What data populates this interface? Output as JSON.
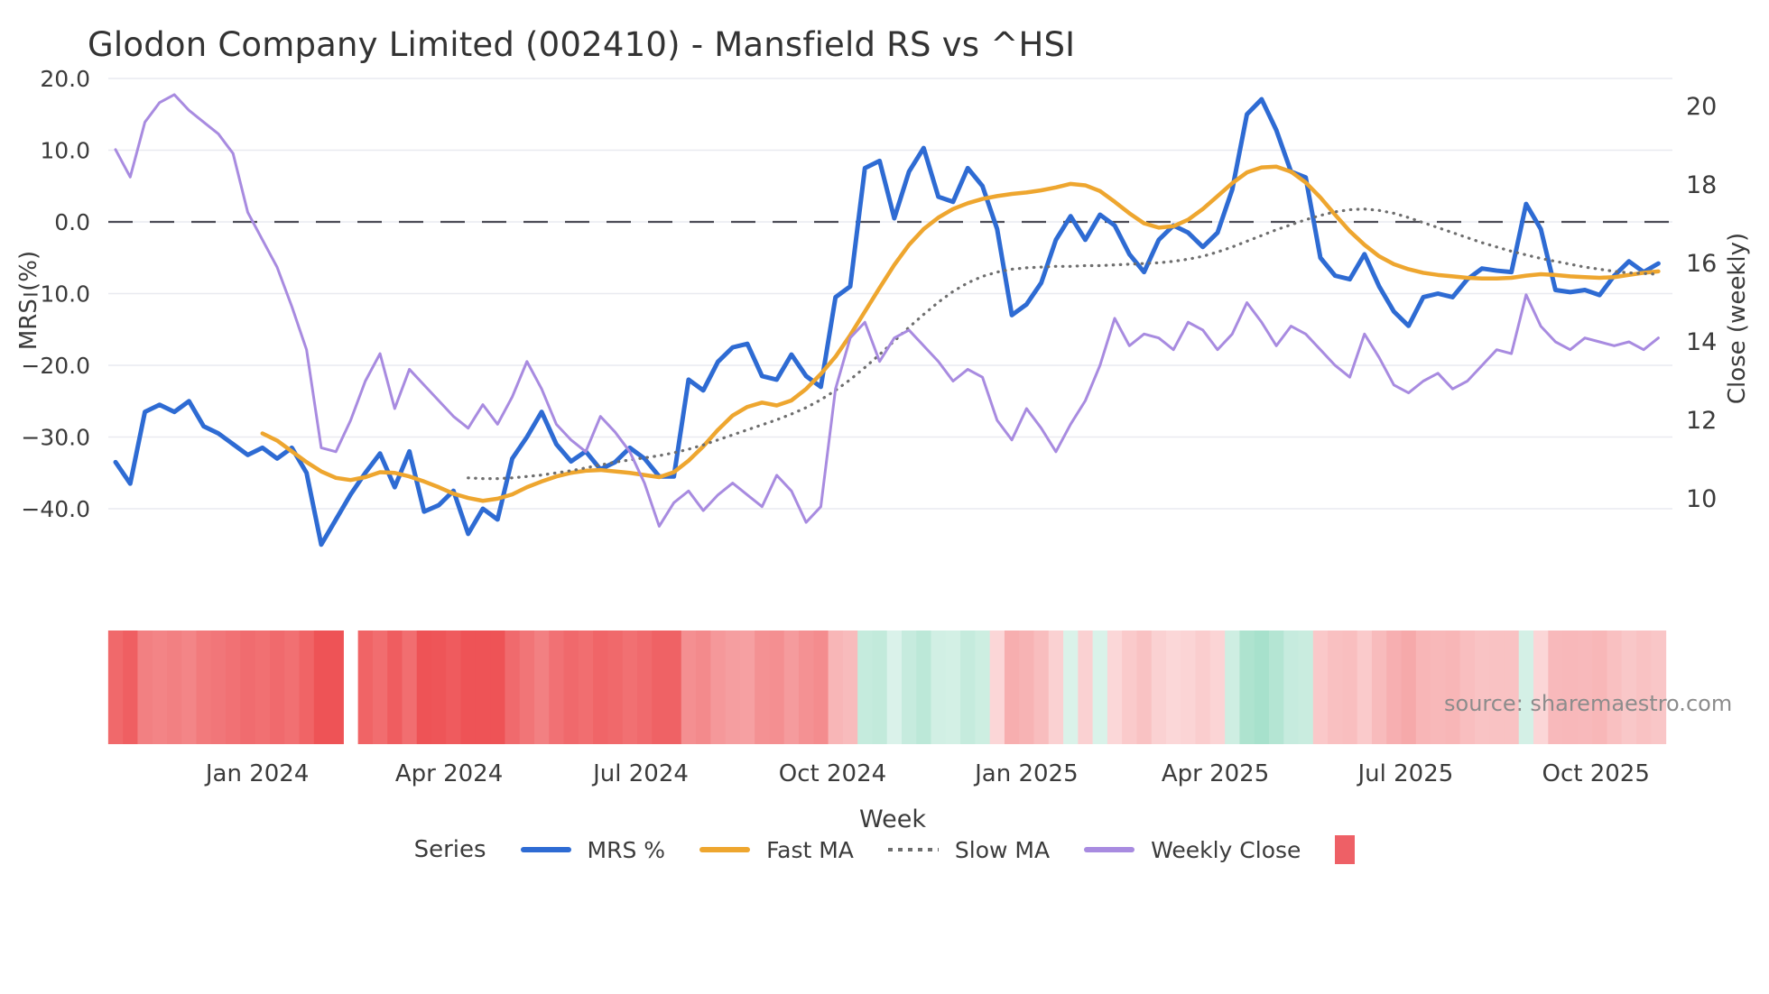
{
  "title": "Glodon Company Limited (002410) - Mansfield RS vs ^HSI",
  "source_text": "source: sharemaestro.com",
  "legend": {
    "title": "Series",
    "items": [
      {
        "label": "MRS %",
        "color": "#2e6bd3",
        "style": "line"
      },
      {
        "label": "Fast MA",
        "color": "#eea62f",
        "style": "line"
      },
      {
        "label": "Slow MA",
        "color": "#6e6e6e",
        "style": "dotted"
      },
      {
        "label": "Weekly Close",
        "color": "#a88be0",
        "style": "line"
      },
      {
        "label": "",
        "color": "#ee6066",
        "style": "square"
      }
    ]
  },
  "colors": {
    "mrs": "#2e6bd3",
    "fast_ma": "#eea62f",
    "slow_ma": "#6e6e6e",
    "weekly_close": "#a88be0",
    "zero_line": "#4b4b55",
    "grid": "#e9eaf0",
    "heat_red": "#ee5356",
    "heat_green": "#60c8a2",
    "tick_text": "#3b3b3b"
  },
  "chart_data": {
    "type": "line",
    "title": "Glodon Company Limited (002410) - Mansfield RS vs ^HSI",
    "xlabel": "Week",
    "ylabel_left": "MRS (%)",
    "ylabel_right": "Close (weekly)",
    "legend_position": "bottom",
    "grid": true,
    "ylim_left": [
      -47,
      22
    ],
    "ylim_right": [
      8.8,
      20.9
    ],
    "yticks_left": [
      20,
      10,
      0,
      -10,
      -20,
      -30,
      -40
    ],
    "ytick_labels_left": [
      "20.0",
      "10.0",
      "0.0",
      "−10.0",
      "−20.0",
      "−30.0",
      "−40.0"
    ],
    "yticks_right": [
      20,
      18,
      16,
      14,
      12,
      10
    ],
    "ytick_labels_right": [
      "20",
      "18",
      "16",
      "14",
      "12",
      "10"
    ],
    "xticks": [
      {
        "label": "Jan 2024",
        "week": 9.65
      },
      {
        "label": "Apr 2024",
        "week": 22.7
      },
      {
        "label": "Jul 2024",
        "week": 35.75
      },
      {
        "label": "Oct 2024",
        "week": 48.8
      },
      {
        "label": "Jan 2025",
        "week": 62.0
      },
      {
        "label": "Apr 2025",
        "week": 74.85
      },
      {
        "label": "Jul 2025",
        "week": 87.8
      },
      {
        "label": "Oct 2025",
        "week": 100.75
      }
    ],
    "n_weeks": 106,
    "zero_line_value": 0,
    "series": [
      {
        "name": "MRS %",
        "axis": "left",
        "color": "#2e6bd3",
        "width": 5,
        "dash": "solid",
        "values": [
          -33.5,
          -36.5,
          -26.5,
          -25.5,
          -26.5,
          -25,
          -28.5,
          -29.5,
          -31,
          -32.5,
          -31.5,
          -33,
          -31.5,
          -35,
          -45,
          -41.5,
          -38,
          -35,
          -32.3,
          -37,
          -32,
          -40.4,
          -39.5,
          -37.5,
          -43.5,
          -40,
          -41.5,
          -33,
          -30,
          -26.5,
          -31,
          -33.4,
          -32,
          -34.5,
          -33.5,
          -31.5,
          -33,
          -35.5,
          -35.5,
          -22,
          -23.5,
          -19.5,
          -17.5,
          -17,
          -21.5,
          -22,
          -18.5,
          -21.5,
          -23,
          -10.5,
          -9,
          7.5,
          8.5,
          0.5,
          7,
          10.3,
          3.5,
          2.8,
          7.5,
          5,
          -1,
          -13,
          -11.5,
          -8.5,
          -2.5,
          0.8,
          -2.5,
          1,
          -0.5,
          -4.5,
          -7,
          -2.5,
          -0.5,
          -1.5,
          -3.5,
          -1.5,
          4.5,
          15,
          17.1,
          12.8,
          7,
          6.2,
          -5,
          -7.5,
          -8,
          -4.5,
          -9,
          -12.5,
          -14.5,
          -10.5,
          -10,
          -10.5,
          -8,
          -6.5,
          -6.8,
          -7,
          2.5,
          -1,
          -9.5,
          -9.8,
          -9.5,
          -10.2,
          -7.5,
          -5.5,
          -7,
          -5.8
        ]
      },
      {
        "name": "Fast MA",
        "axis": "left",
        "color": "#eea62f",
        "width": 4.5,
        "dash": "solid",
        "values": [
          null,
          null,
          null,
          null,
          null,
          null,
          null,
          null,
          null,
          null,
          -29.5,
          -30.5,
          -32,
          -33.5,
          -34.8,
          -35.7,
          -36,
          -35.6,
          -34.9,
          -35,
          -35.5,
          -36.2,
          -37,
          -37.9,
          -38.5,
          -38.9,
          -38.6,
          -38,
          -37,
          -36.2,
          -35.5,
          -35,
          -34.7,
          -34.6,
          -34.8,
          -35,
          -35.3,
          -35.6,
          -34.9,
          -33.3,
          -31.3,
          -29,
          -27,
          -25.8,
          -25.2,
          -25.6,
          -24.9,
          -23.3,
          -21.2,
          -18.8,
          -15.8,
          -12.5,
          -9.2,
          -6,
          -3.2,
          -1,
          0.6,
          1.8,
          2.6,
          3.2,
          3.6,
          3.9,
          4.1,
          4.4,
          4.8,
          5.3,
          5.1,
          4.3,
          2.8,
          1.2,
          -0.2,
          -0.8,
          -0.6,
          0.3,
          1.8,
          3.6,
          5.4,
          6.9,
          7.6,
          7.7,
          7,
          5.5,
          3.4,
          1,
          -1.3,
          -3.2,
          -4.8,
          -5.9,
          -6.6,
          -7.1,
          -7.4,
          -7.6,
          -7.8,
          -7.9,
          -7.9,
          -7.8,
          -7.5,
          -7.3,
          -7.4,
          -7.6,
          -7.7,
          -7.8,
          -7.7,
          -7.4,
          -7.1,
          -6.9
        ]
      },
      {
        "name": "Slow MA",
        "axis": "left",
        "color": "#6e6e6e",
        "width": 3.2,
        "dash": "dotted",
        "values": [
          null,
          null,
          null,
          null,
          null,
          null,
          null,
          null,
          null,
          null,
          null,
          null,
          null,
          null,
          null,
          null,
          null,
          null,
          null,
          null,
          null,
          null,
          null,
          null,
          -35.7,
          -35.8,
          -35.8,
          -35.7,
          -35.5,
          -35.3,
          -35,
          -34.7,
          -34.3,
          -33.9,
          -33.5,
          -33.2,
          -32.9,
          -32.6,
          -32.2,
          -31.7,
          -31.1,
          -30.4,
          -29.7,
          -29,
          -28.3,
          -27.6,
          -26.8,
          -25.9,
          -24.8,
          -23.5,
          -22,
          -20.3,
          -18.5,
          -16.6,
          -14.7,
          -12.9,
          -11.2,
          -9.7,
          -8.5,
          -7.6,
          -7,
          -6.6,
          -6.4,
          -6.3,
          -6.2,
          -6.2,
          -6.1,
          -6.1,
          -6,
          -5.9,
          -5.8,
          -5.7,
          -5.5,
          -5.2,
          -4.8,
          -4.2,
          -3.5,
          -2.7,
          -1.9,
          -1.1,
          -0.4,
          0.3,
          0.9,
          1.4,
          1.7,
          1.8,
          1.6,
          1.2,
          0.6,
          -0.1,
          -0.8,
          -1.5,
          -2.2,
          -2.9,
          -3.5,
          -4.1,
          -4.6,
          -5.1,
          -5.5,
          -5.9,
          -6.3,
          -6.6,
          -6.9,
          -7.1,
          -7.2,
          -7.3
        ]
      },
      {
        "name": "Weekly Close",
        "axis": "right",
        "color": "#a88be0",
        "width": 3,
        "dash": "solid",
        "values": [
          18.9,
          18.2,
          19.6,
          20.1,
          20.3,
          19.9,
          19.6,
          19.3,
          18.8,
          17.3,
          16.6,
          15.9,
          14.9,
          13.8,
          11.3,
          11.2,
          12,
          13,
          13.7,
          12.3,
          13.3,
          12.9,
          12.5,
          12.1,
          11.8,
          12.4,
          11.9,
          12.6,
          13.5,
          12.8,
          11.9,
          11.5,
          11.2,
          12.1,
          11.7,
          11.2,
          10.4,
          9.3,
          9.9,
          10.2,
          9.7,
          10.1,
          10.4,
          10.1,
          9.8,
          10.6,
          10.2,
          9.4,
          9.8,
          12.8,
          14.1,
          14.5,
          13.5,
          14.1,
          14.3,
          13.9,
          13.5,
          13,
          13.3,
          13.1,
          12,
          11.5,
          12.3,
          11.8,
          11.2,
          11.9,
          12.5,
          13.4,
          14.6,
          13.9,
          14.2,
          14.1,
          13.8,
          14.5,
          14.3,
          13.8,
          14.2,
          15,
          14.5,
          13.9,
          14.4,
          14.2,
          13.8,
          13.4,
          13.1,
          14.2,
          13.6,
          12.9,
          12.7,
          13,
          13.2,
          12.8,
          13,
          13.4,
          13.8,
          13.7,
          15.2,
          14.4,
          14,
          13.8,
          14.1,
          14,
          13.9,
          14,
          13.8,
          14.1
        ]
      }
    ],
    "heatmap_strip": {
      "description": "weekly MRS sign/magnitude strip: red negative, green positive",
      "source_series": "MRS %",
      "gap_weeks": [
        16
      ],
      "max_abs": 40,
      "red": "#ee5356",
      "green": "#60c8a2"
    }
  }
}
